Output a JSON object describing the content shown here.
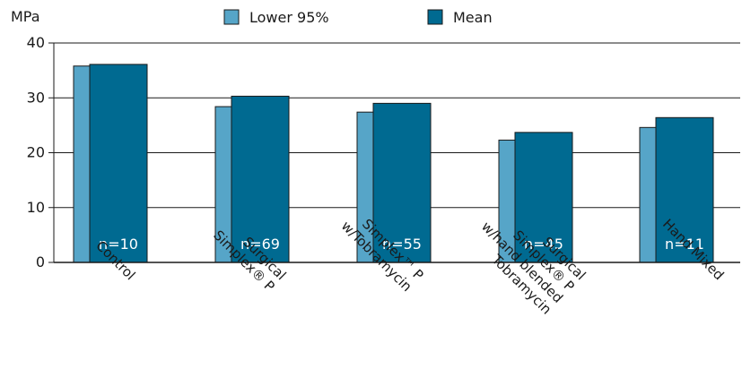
{
  "chart_data": {
    "type": "bar",
    "unit_label": "MPa",
    "categories": [
      [
        "Control"
      ],
      [
        "Surgical",
        "Simplex® P"
      ],
      [
        "Simplex™ P",
        "w/Tobramycin"
      ],
      [
        "Surgical",
        "Simplex® P",
        "w/hand blended",
        "Tobramycin"
      ],
      [
        "Hand Mixed"
      ]
    ],
    "series": [
      {
        "name": "Lower 95%",
        "color": "#56a5c8",
        "values": [
          35.8,
          28.4,
          27.4,
          22.3,
          24.6
        ]
      },
      {
        "name": "Mean",
        "color": "#006a91",
        "values": [
          36.1,
          30.3,
          29.0,
          23.7,
          26.4
        ]
      }
    ],
    "n_labels": [
      "n=10",
      "n=69",
      "n=55",
      "n=45",
      "n=11"
    ],
    "yticks": [
      "0",
      "10",
      "20",
      "30",
      "40"
    ],
    "ylim": [
      0,
      40
    ],
    "grid": true,
    "legend_position": "top"
  }
}
